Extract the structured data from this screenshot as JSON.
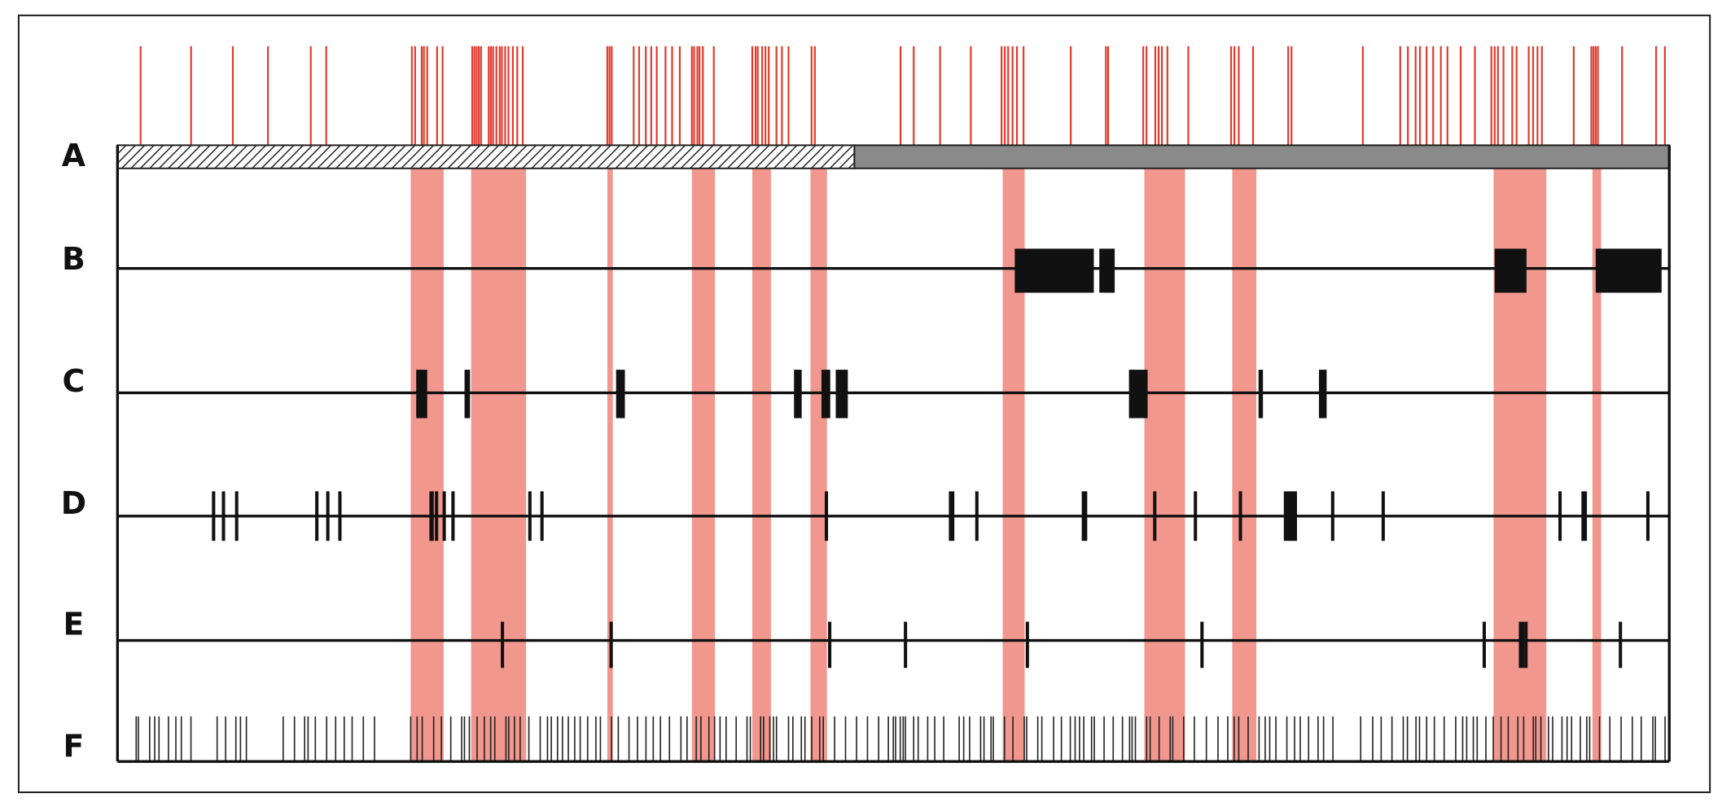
{
  "row_labels": [
    "A",
    "B",
    "C",
    "D",
    "E",
    "F"
  ]
}
